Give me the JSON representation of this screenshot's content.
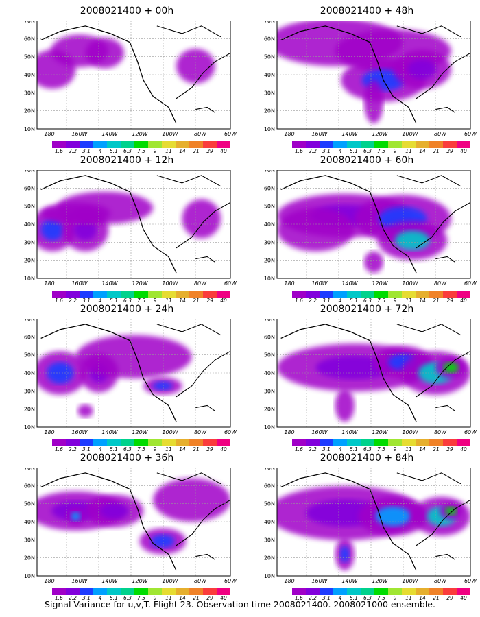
{
  "panels": [
    {
      "title": "2008021400 + 00h"
    },
    {
      "title": "2008021400 + 48h"
    },
    {
      "title": "2008021400 + 12h"
    },
    {
      "title": "2008021400 + 60h"
    },
    {
      "title": "2008021400 + 24h"
    },
    {
      "title": "2008021400 + 72h"
    },
    {
      "title": "2008021400 + 36h"
    },
    {
      "title": "2008021400 + 84h"
    }
  ],
  "axes": {
    "lat_labels": [
      "70N",
      "60N",
      "50N",
      "40N",
      "30N",
      "20N",
      "10N"
    ],
    "lon_labels": [
      "180",
      "160W",
      "140W",
      "120W",
      "100W",
      "80W",
      "60W"
    ]
  },
  "colorbar": {
    "labels": [
      "1.6",
      "2.2",
      "3.1",
      "4",
      "5.1",
      "6.3",
      "7.5",
      "9",
      "11",
      "14",
      "21",
      "29",
      "40"
    ],
    "colors": [
      "#a000c8",
      "#8200dc",
      "#1e3cff",
      "#00a0ff",
      "#00c8c8",
      "#00d28c",
      "#00dc00",
      "#a0e632",
      "#e6dc32",
      "#e6af2d",
      "#f08228",
      "#fa3c3c",
      "#f00082"
    ]
  },
  "footer": {
    "text": "Signal Variance for u,v,T. Flight 23. Observation time 2008021400. 2008021000 ensemble."
  }
}
